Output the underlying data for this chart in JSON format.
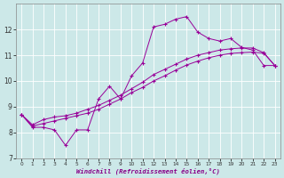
{
  "xlabel": "Windchill (Refroidissement éolien,°C)",
  "bg_color": "#cce8e8",
  "line_color": "#990099",
  "grid_color": "#aacccc",
  "xlim": [
    -0.5,
    23.5
  ],
  "ylim": [
    7,
    13
  ],
  "yticks": [
    7,
    8,
    9,
    10,
    11,
    12
  ],
  "xticks": [
    0,
    1,
    2,
    3,
    4,
    5,
    6,
    7,
    8,
    9,
    10,
    11,
    12,
    13,
    14,
    15,
    16,
    17,
    18,
    19,
    20,
    21,
    22,
    23
  ],
  "series1_x": [
    0,
    1,
    2,
    3,
    4,
    5,
    6,
    7,
    8,
    9,
    10,
    11,
    12,
    13,
    14,
    15,
    16,
    17,
    18,
    19,
    20,
    21,
    22,
    23
  ],
  "series1_y": [
    8.7,
    8.2,
    8.2,
    8.1,
    7.5,
    8.1,
    8.1,
    9.3,
    9.8,
    9.3,
    10.2,
    10.7,
    12.1,
    12.2,
    12.4,
    12.5,
    11.9,
    11.65,
    11.55,
    11.65,
    11.3,
    11.2,
    10.6,
    10.6
  ],
  "series2_x": [
    0,
    1,
    2,
    3,
    4,
    5,
    6,
    7,
    8,
    9,
    10,
    11,
    12,
    13,
    14,
    15,
    16,
    17,
    18,
    19,
    20,
    21,
    22,
    23
  ],
  "series2_y": [
    8.7,
    8.25,
    8.35,
    8.45,
    8.55,
    8.65,
    8.75,
    8.9,
    9.1,
    9.3,
    9.55,
    9.75,
    10.0,
    10.2,
    10.42,
    10.62,
    10.77,
    10.9,
    11.0,
    11.07,
    11.1,
    11.12,
    11.08,
    10.6
  ],
  "series3_x": [
    0,
    1,
    2,
    3,
    4,
    5,
    6,
    7,
    8,
    9,
    10,
    11,
    12,
    13,
    14,
    15,
    16,
    17,
    18,
    19,
    20,
    21,
    22,
    23
  ],
  "series3_y": [
    8.7,
    8.3,
    8.5,
    8.6,
    8.65,
    8.75,
    8.9,
    9.05,
    9.25,
    9.45,
    9.7,
    9.95,
    10.25,
    10.45,
    10.65,
    10.85,
    11.0,
    11.1,
    11.2,
    11.25,
    11.28,
    11.28,
    11.1,
    10.6
  ]
}
